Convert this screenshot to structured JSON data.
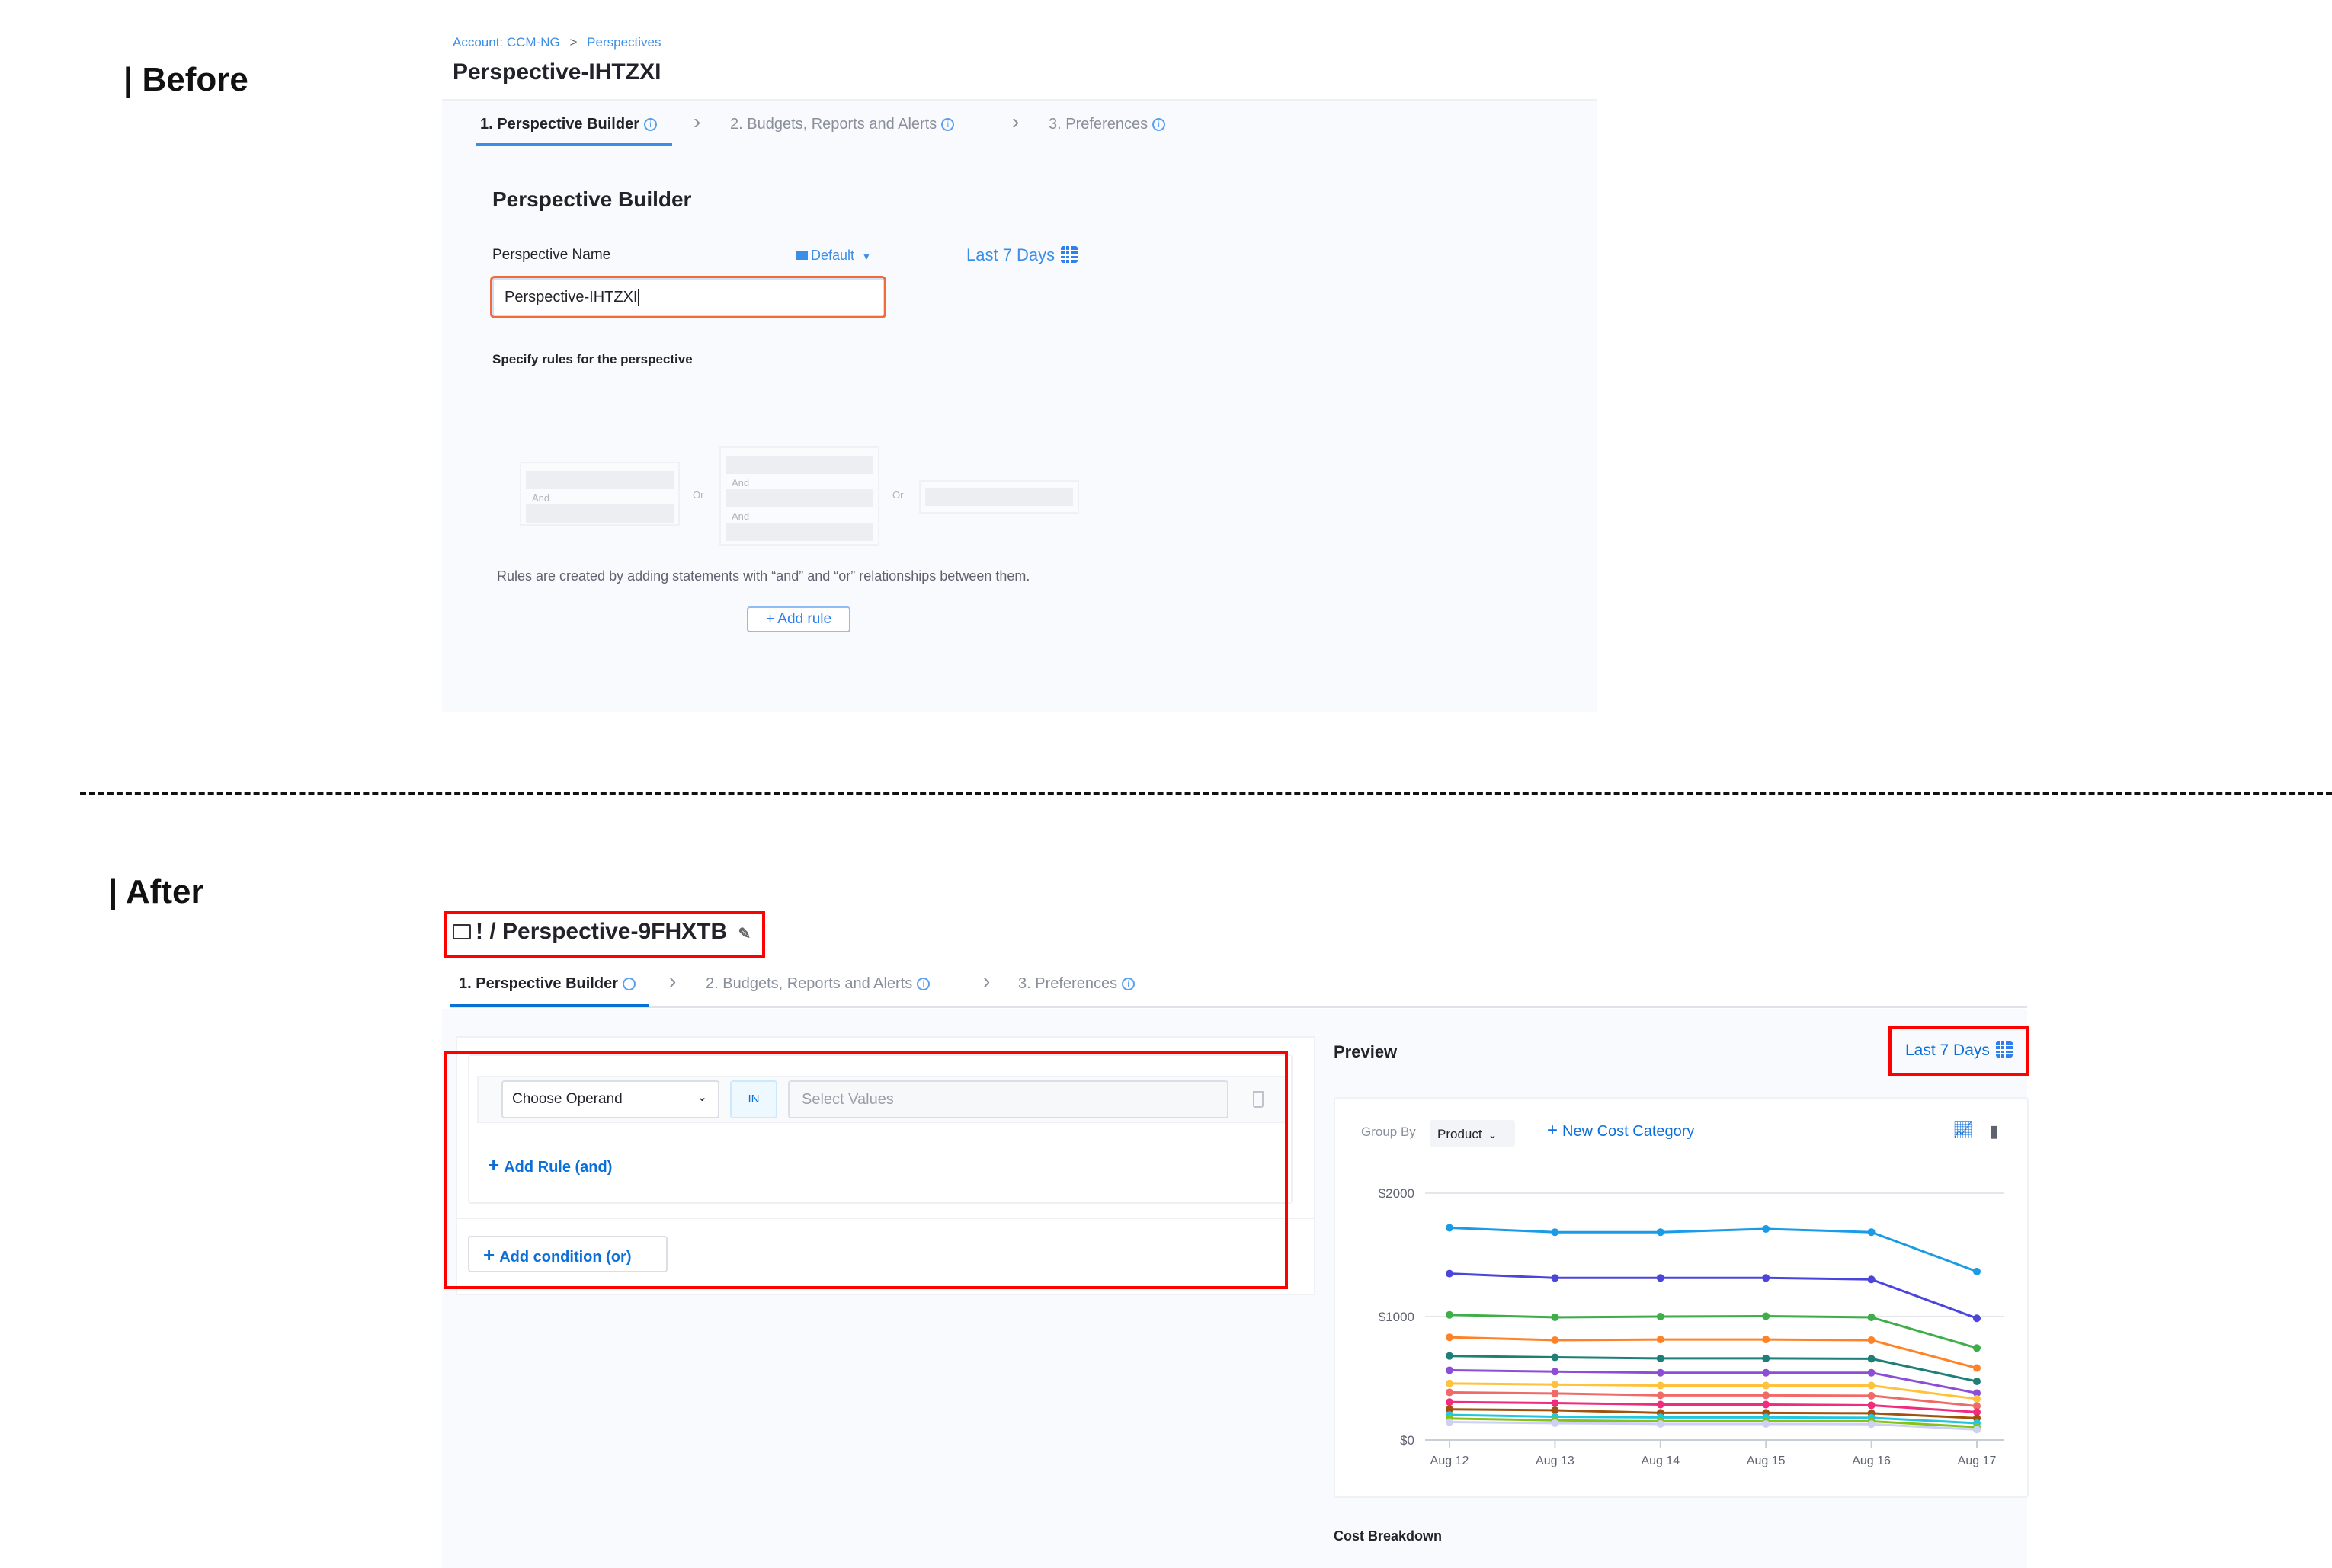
{
  "before": {
    "section_label": "| Before",
    "breadcrumb": {
      "account": "Account: CCM-NG",
      "separator": ">",
      "perspectives": "Perspectives"
    },
    "title": "Perspective-IHTZXI",
    "tabs": [
      {
        "label": "1. Perspective Builder"
      },
      {
        "label": "2. Budgets, Reports and Alerts"
      },
      {
        "label": "3. Preferences"
      }
    ],
    "heading": "Perspective Builder",
    "name_label": "Perspective Name",
    "folder": "Default",
    "date_range": "Last 7 Days",
    "name_value": "Perspective-IHTZXI",
    "rules_label": "Specify rules for the perspective",
    "skeleton": {
      "and": "And",
      "or": "Or"
    },
    "rules_help": "Rules are created by adding statements with “and” and “or” relationships between them.",
    "add_rule": "+ Add rule"
  },
  "after": {
    "section_label": "| After",
    "title_prefix": "! /",
    "title": "Perspective-9FHXTB",
    "tabs": [
      {
        "label": "1. Perspective Builder"
      },
      {
        "label": "2. Budgets, Reports and Alerts"
      },
      {
        "label": "3. Preferences"
      }
    ],
    "operand_placeholder": "Choose Operand",
    "operator": "IN",
    "values_placeholder": "Select Values",
    "add_rule_and": "Add Rule (and)",
    "add_condition_or": "Add condition (or)",
    "preview": {
      "title": "Preview",
      "date_range": "Last 7 Days",
      "group_by_label": "Group By",
      "group_by_value": "Product",
      "new_cost_category": "New Cost Category",
      "cost_breakdown": "Cost Breakdown"
    }
  },
  "colors": {
    "accent": "#0b6fd8",
    "highlight": "#ff0000",
    "input_error": "#f26b3a"
  },
  "chart_data": {
    "type": "line",
    "categories": [
      "Aug 12",
      "Aug 13",
      "Aug 14",
      "Aug 15",
      "Aug 16",
      "Aug 17"
    ],
    "yticks": [
      "$0",
      "$1000",
      "$2000"
    ],
    "ylim": [
      0,
      2000
    ],
    "grid": true,
    "series": [
      {
        "color": "#1a9be6",
        "values": [
          1719,
          1684,
          1684,
          1710,
          1684,
          1365
        ]
      },
      {
        "color": "#4b45db",
        "values": [
          1348,
          1313,
          1313,
          1313,
          1301,
          986
        ]
      },
      {
        "color": "#3fae49",
        "values": [
          1014,
          994,
          1000,
          1003,
          994,
          745
        ]
      },
      {
        "color": "#ff8228",
        "values": [
          832,
          809,
          814,
          814,
          809,
          583
        ]
      },
      {
        "color": "#1e7f78",
        "values": [
          681,
          670,
          661,
          661,
          658,
          475
        ]
      },
      {
        "color": "#8b4fd6",
        "values": [
          565,
          554,
          545,
          545,
          545,
          380
        ]
      },
      {
        "color": "#ffc23a",
        "values": [
          458,
          449,
          441,
          441,
          441,
          333
        ]
      },
      {
        "color": "#f06a6a",
        "values": [
          386,
          377,
          362,
          362,
          359,
          275
        ]
      },
      {
        "color": "#ef2c7d",
        "values": [
          307,
          299,
          287,
          287,
          281,
          226
        ]
      },
      {
        "color": "#a0520e",
        "values": [
          249,
          241,
          220,
          220,
          217,
          177
        ]
      },
      {
        "color": "#22c7de",
        "values": [
          203,
          188,
          183,
          183,
          180,
          136
        ]
      },
      {
        "color": "#86c21a",
        "values": [
          174,
          159,
          151,
          151,
          151,
          104
        ]
      },
      {
        "color": "#cdd0f5",
        "values": [
          145,
          136,
          130,
          130,
          128,
          84
        ]
      }
    ]
  }
}
